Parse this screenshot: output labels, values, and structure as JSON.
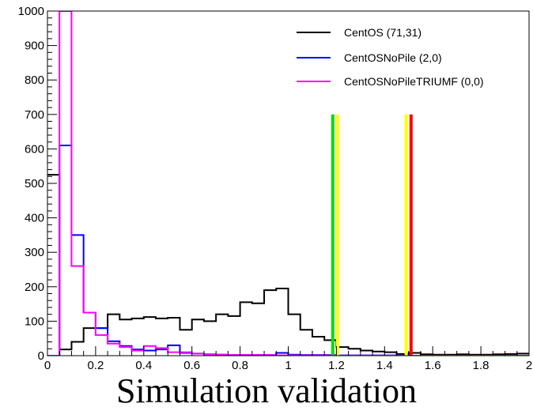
{
  "chart_data": {
    "type": "histogram",
    "caption": "Simulation validation",
    "xlim": [
      0,
      2
    ],
    "ylim": [
      0,
      1000
    ],
    "x_ticks": [
      "0",
      "0.2",
      "0.4",
      "0.6",
      "0.8",
      "1",
      "1.2",
      "1.4",
      "1.6",
      "1.8",
      "2"
    ],
    "y_ticks": [
      "0",
      "100",
      "200",
      "300",
      "400",
      "500",
      "600",
      "700",
      "800",
      "900",
      "1000"
    ],
    "bin_width": 0.05,
    "legend_position": "top-right",
    "series": [
      {
        "name": "CentOS (71,31)",
        "color": "#000000",
        "values": [
          525,
          18,
          40,
          80,
          80,
          120,
          105,
          108,
          112,
          108,
          110,
          75,
          105,
          100,
          120,
          115,
          155,
          152,
          190,
          195,
          120,
          75,
          55,
          45,
          25,
          20,
          15,
          12,
          10,
          5,
          8,
          4,
          3,
          3,
          4,
          3,
          3,
          4,
          5,
          6
        ]
      },
      {
        "name": "CentOSNoPile (2,0)",
        "color": "#0000ff",
        "values": [
          0,
          610,
          350,
          125,
          80,
          42,
          28,
          18,
          15,
          18,
          30,
          8,
          6,
          4,
          3,
          2,
          2,
          2,
          2,
          8,
          3,
          2,
          2,
          2,
          1,
          1,
          1,
          1,
          1,
          1,
          0,
          0,
          0,
          0,
          0,
          0,
          0,
          0,
          0,
          0
        ]
      },
      {
        "name": "CentOSNoPileTRIUMF (0,0)",
        "color": "#ff00ff",
        "values": [
          0,
          1000,
          260,
          125,
          60,
          35,
          25,
          15,
          28,
          22,
          10,
          10,
          6,
          4,
          3,
          2,
          2,
          2,
          2,
          1,
          1,
          1,
          1,
          1,
          0,
          0,
          0,
          0,
          0,
          0,
          0,
          0,
          0,
          0,
          0,
          0,
          0,
          0,
          0,
          0
        ]
      }
    ],
    "vertical_lines": [
      {
        "x": 1.185,
        "top": 700,
        "color": "#00dd00"
      },
      {
        "x": 1.205,
        "top": 700,
        "color": "#ffff00"
      },
      {
        "x": 1.49,
        "top": 700,
        "color": "#ffff00"
      },
      {
        "x": 1.51,
        "top": 700,
        "color": "#ff0000"
      }
    ]
  }
}
